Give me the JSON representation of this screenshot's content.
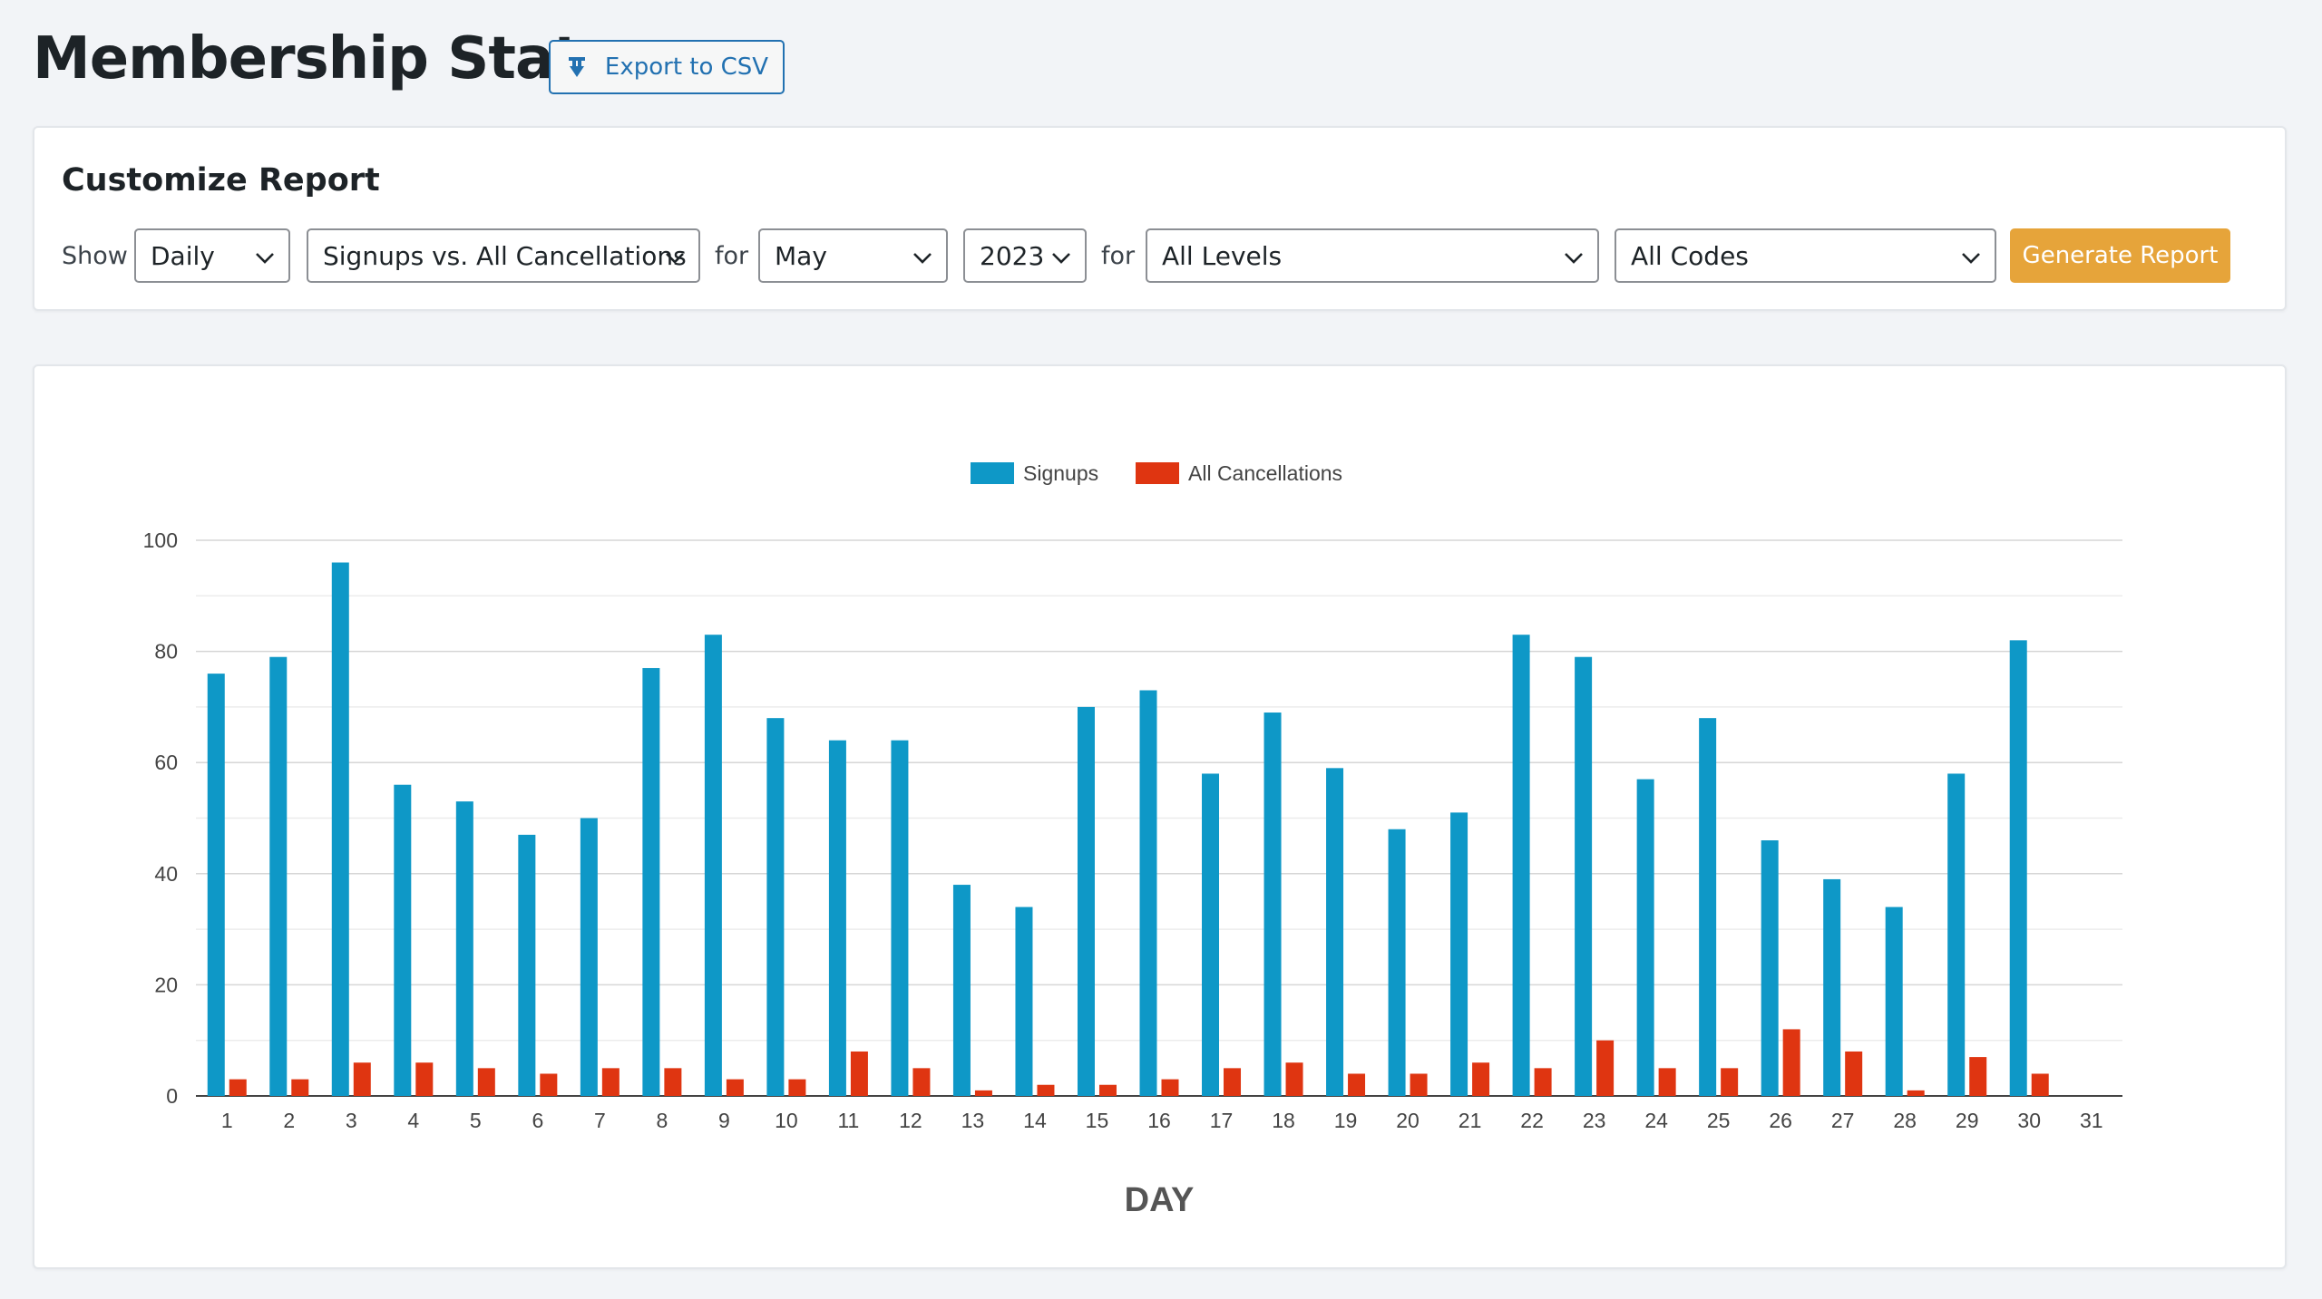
{
  "header": {
    "title": "Membership Stats",
    "export_label": "Export to CSV"
  },
  "customize": {
    "title": "Customize Report",
    "show_label": "Show",
    "for_label_1": "for",
    "for_label_2": "for",
    "period": "Daily",
    "report_type": "Signups vs. All Cancellations",
    "month": "May",
    "year": "2023",
    "level": "All Levels",
    "code": "All Codes",
    "generate_label": "Generate Report"
  },
  "colors": {
    "signups": "#0e98c7",
    "cancellations": "#df3511",
    "accent_button": "#e6a43a",
    "link": "#2271b1"
  },
  "icons": {
    "export": "download-icon",
    "select": "chevron-down-icon"
  },
  "chart_data": {
    "type": "bar",
    "title": "",
    "xlabel": "DAY",
    "ylabel": "",
    "ylim": [
      0,
      100
    ],
    "yticks": [
      0,
      20,
      40,
      60,
      80,
      100
    ],
    "legend_position": "top-center",
    "grid": true,
    "categories": [
      "1",
      "2",
      "3",
      "4",
      "5",
      "6",
      "7",
      "8",
      "9",
      "10",
      "11",
      "12",
      "13",
      "14",
      "15",
      "16",
      "17",
      "18",
      "19",
      "20",
      "21",
      "22",
      "23",
      "24",
      "25",
      "26",
      "27",
      "28",
      "29",
      "30",
      "31"
    ],
    "series": [
      {
        "name": "Signups",
        "color": "#0e98c7",
        "values": [
          76,
          79,
          96,
          56,
          53,
          47,
          50,
          77,
          83,
          68,
          64,
          64,
          38,
          34,
          70,
          73,
          58,
          69,
          59,
          48,
          51,
          83,
          79,
          57,
          68,
          46,
          39,
          34,
          58,
          82,
          0
        ]
      },
      {
        "name": "All Cancellations",
        "color": "#df3511",
        "values": [
          3,
          3,
          6,
          6,
          5,
          4,
          5,
          5,
          3,
          3,
          8,
          5,
          1,
          2,
          2,
          3,
          5,
          6,
          4,
          4,
          6,
          5,
          10,
          5,
          5,
          12,
          8,
          1,
          7,
          4,
          0
        ]
      }
    ]
  }
}
